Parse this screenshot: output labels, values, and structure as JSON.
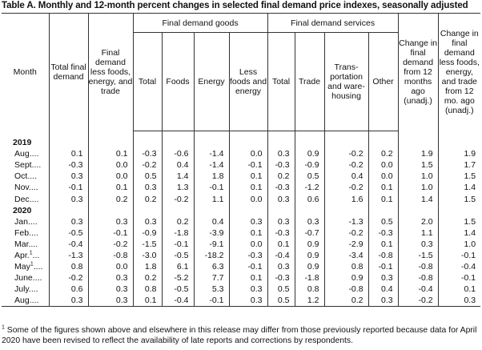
{
  "title": "Table A. Monthly and 12-month percent changes in selected final demand price indexes, seasonally adjusted",
  "headers": {
    "month": "Month",
    "total_final_demand": "Total final demand",
    "final_demand_less": "Final demand less foods, energy, and trade",
    "goods_group": "Final demand goods",
    "services_group": "Final demand services",
    "goods_total": "Total",
    "goods_foods": "Foods",
    "goods_energy": "Energy",
    "goods_less": "Less foods and energy",
    "services_total": "Total",
    "services_trade": "Trade",
    "services_transport": "Trans-portation and ware-housing",
    "services_other": "Other",
    "change_12mo": "Change in final demand from 12 months ago (unadj.)",
    "change_12mo_less": "Change in final demand less foods, energy, and trade from 12 mo. ago (unadj.)"
  },
  "years": [
    "2019",
    "2020"
  ],
  "rows_2019": [
    {
      "month": "Aug",
      "sup": "",
      "values": [
        "0.1",
        "0.1",
        "-0.3",
        "-0.6",
        "-1.4",
        "0.0",
        "0.3",
        "0.9",
        "-0.2",
        "0.2",
        "1.9",
        "1.9"
      ]
    },
    {
      "month": "Sept",
      "sup": "",
      "values": [
        "-0.3",
        "0.0",
        "-0.2",
        "0.4",
        "-1.4",
        "-0.1",
        "-0.3",
        "-0.9",
        "-0.2",
        "0.0",
        "1.5",
        "1.7"
      ]
    },
    {
      "month": "Oct",
      "sup": "",
      "values": [
        "0.3",
        "0.0",
        "0.5",
        "1.4",
        "1.8",
        "0.1",
        "0.2",
        "0.5",
        "0.4",
        "0.0",
        "1.0",
        "1.5"
      ]
    },
    {
      "month": "Nov",
      "sup": "",
      "values": [
        "-0.1",
        "0.1",
        "0.3",
        "1.3",
        "-0.1",
        "0.1",
        "-0.3",
        "-1.2",
        "-0.2",
        "0.1",
        "1.0",
        "1.4"
      ]
    },
    {
      "month": "Dec",
      "sup": "",
      "values": [
        "0.3",
        "0.2",
        "0.2",
        "-0.2",
        "1.1",
        "0.0",
        "0.3",
        "0.6",
        "1.6",
        "0.1",
        "1.4",
        "1.5"
      ]
    }
  ],
  "rows_2020": [
    {
      "month": "Jan",
      "sup": "",
      "values": [
        "0.3",
        "0.3",
        "0.3",
        "0.2",
        "0.4",
        "0.3",
        "0.3",
        "0.3",
        "-1.3",
        "0.5",
        "2.0",
        "1.5"
      ]
    },
    {
      "month": "Feb",
      "sup": "",
      "values": [
        "-0.5",
        "-0.1",
        "-0.9",
        "-1.8",
        "-3.9",
        "0.1",
        "-0.3",
        "-0.7",
        "-0.2",
        "-0.3",
        "1.1",
        "1.4"
      ]
    },
    {
      "month": "Mar",
      "sup": "",
      "values": [
        "-0.4",
        "-0.2",
        "-1.5",
        "-0.1",
        "-9.1",
        "0.0",
        "0.1",
        "0.9",
        "-2.9",
        "0.1",
        "0.3",
        "1.0"
      ]
    },
    {
      "month": "Apr.",
      "sup": "1",
      "values": [
        "-1.3",
        "-0.8",
        "-3.0",
        "-0.5",
        "-18.2",
        "-0.3",
        "-0.4",
        "0.9",
        "-3.4",
        "-0.8",
        "-1.5",
        "-0.1"
      ]
    },
    {
      "month": "May",
      "sup": "1",
      "values": [
        "0.8",
        "0.0",
        "1.8",
        "6.1",
        "6.3",
        "-0.1",
        "0.3",
        "0.9",
        "0.8",
        "-0.1",
        "-0.8",
        "-0.4"
      ]
    },
    {
      "month": "June",
      "sup": "",
      "values": [
        "-0.2",
        "0.3",
        "0.2",
        "-5.2",
        "7.7",
        "0.1",
        "-0.3",
        "-1.8",
        "0.9",
        "0.3",
        "-0.8",
        "-0.1"
      ]
    },
    {
      "month": "July",
      "sup": "",
      "values": [
        "0.6",
        "0.3",
        "0.8",
        "-0.5",
        "5.3",
        "0.3",
        "0.5",
        "0.8",
        "-0.8",
        "0.4",
        "-0.4",
        "0.1"
      ]
    },
    {
      "month": "Aug",
      "sup": "",
      "values": [
        "0.3",
        "0.3",
        "0.1",
        "-0.4",
        "-0.1",
        "0.3",
        "0.5",
        "1.2",
        "0.2",
        "0.3",
        "-0.2",
        "0.3"
      ]
    }
  ],
  "footnote": {
    "marker": "1",
    "text": "Some of the figures shown above and elsewhere in this release may differ from those previously reported because data for April 2020 have been revised to reflect the availability of late reports and corrections by respondents."
  }
}
